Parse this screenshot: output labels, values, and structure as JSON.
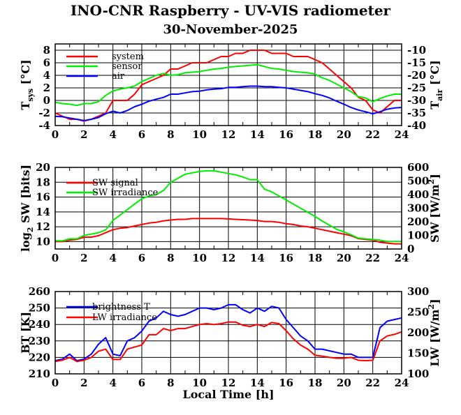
{
  "title": "INO-CNR Raspberry - UV-VIS radiometer",
  "subtitle": "30-November-2025",
  "xlabel": "Local Time [h]",
  "chart_data": [
    {
      "type": "line",
      "xlim": [
        0,
        24
      ],
      "xticks": [
        0,
        2,
        4,
        6,
        8,
        10,
        12,
        14,
        16,
        18,
        20,
        22,
        24
      ],
      "ylim_left": [
        -4,
        9
      ],
      "yticks_left": [
        -4,
        -2,
        0,
        2,
        4,
        6,
        8
      ],
      "ylim_right": [
        -40,
        -7.5
      ],
      "yticks_right": [
        -40,
        -35,
        -30,
        -25,
        -20,
        -15,
        -10
      ],
      "ylabel_left": {
        "main": "T",
        "sub": "sys",
        "rest": " [°C]"
      },
      "ylabel_right": {
        "main": "T",
        "sub": "air",
        "rest": " [°C]"
      },
      "x": [
        0,
        0.5,
        1,
        1.5,
        2,
        2.5,
        3,
        3.5,
        4,
        4.5,
        5,
        5.5,
        6,
        6.5,
        7,
        7.5,
        8,
        8.5,
        9,
        9.5,
        10,
        10.5,
        11,
        11.5,
        12,
        12.5,
        13,
        13.5,
        14,
        14.5,
        15,
        15.5,
        16,
        16.5,
        17,
        17.5,
        18,
        18.5,
        19,
        19.5,
        20,
        20.5,
        21,
        21.5,
        22,
        22.5,
        23,
        23.5,
        24
      ],
      "series": [
        {
          "name": "system",
          "axis": "left",
          "color": "#ff0000",
          "values": [
            -2,
            -2.5,
            -3,
            -3,
            -3.3,
            -3,
            -2.5,
            -2,
            0,
            0,
            0,
            1,
            2.5,
            3,
            3.5,
            4,
            5,
            5,
            5.5,
            6,
            6,
            6,
            6.5,
            7,
            7,
            7.5,
            7.5,
            8,
            8,
            8,
            7.5,
            7.5,
            7.5,
            7,
            7,
            7,
            6.5,
            6,
            5,
            4,
            3,
            2,
            0.5,
            0,
            -1.5,
            -2,
            -1,
            0,
            0
          ]
        },
        {
          "name": "sensor",
          "axis": "left",
          "color": "#00ee00",
          "values": [
            -0.3,
            -0.5,
            -0.6,
            -0.8,
            -0.5,
            -0.5,
            -0.2,
            0.8,
            1.5,
            1.8,
            2,
            2.3,
            3,
            3.5,
            4,
            4.3,
            4,
            4.1,
            4.4,
            4.5,
            4.6,
            4.8,
            5,
            5.1,
            5.3,
            5.4,
            5.5,
            5.6,
            5.7,
            5.4,
            5.1,
            5,
            4.8,
            4.6,
            4.5,
            4.4,
            4.2,
            3.6,
            3.2,
            2.6,
            2,
            1.4,
            0.6,
            0.4,
            -0.2,
            0.3,
            0.7,
            1,
            1
          ]
        },
        {
          "name": "air",
          "axis": "right",
          "color": "#0000ff",
          "values": [
            -36.3,
            -36.5,
            -37,
            -37.5,
            -38,
            -37.5,
            -36.8,
            -35.3,
            -34.3,
            -35,
            -34,
            -32.5,
            -31.5,
            -30.3,
            -29.5,
            -28.8,
            -27.5,
            -27.5,
            -27,
            -26.5,
            -26.3,
            -25.8,
            -25.5,
            -25.3,
            -24.8,
            -24.8,
            -24.5,
            -24.3,
            -24.3,
            -24.5,
            -24.5,
            -24.8,
            -25,
            -25.5,
            -26,
            -26.5,
            -27.3,
            -28,
            -29,
            -30.3,
            -31.5,
            -32.8,
            -33.8,
            -34.5,
            -35.3,
            -34.5,
            -33.5,
            -33,
            -32.8
          ]
        }
      ]
    },
    {
      "type": "line",
      "xlim": [
        0,
        24
      ],
      "xticks": [
        0,
        2,
        4,
        6,
        8,
        10,
        12,
        14,
        16,
        18,
        20,
        22,
        24
      ],
      "ylim_left": [
        9,
        20
      ],
      "yticks_left": [
        10,
        12,
        14,
        16,
        18,
        20
      ],
      "ylim_right": [
        0,
        600
      ],
      "yticks_right": [
        0,
        100,
        200,
        300,
        400,
        500,
        600
      ],
      "ylabel_left": {
        "main": "log",
        "sub": "2",
        "rest": " SW [bits]"
      },
      "ylabel_right": {
        "main": "SW [W/m",
        "sup": "2",
        "rest": "]"
      },
      "x": [
        0,
        0.5,
        1,
        1.5,
        2,
        2.5,
        3,
        3.5,
        4,
        4.5,
        5,
        5.5,
        6,
        6.5,
        7,
        7.5,
        8,
        8.5,
        9,
        9.5,
        10,
        10.5,
        11,
        11.5,
        12,
        12.5,
        13,
        13.5,
        14,
        14.5,
        15,
        15.5,
        16,
        16.5,
        17,
        17.5,
        18,
        18.5,
        19,
        19.5,
        20,
        20.5,
        21,
        21.5,
        22,
        22.5,
        23,
        23.5,
        24
      ],
      "series": [
        {
          "name": "SW signal",
          "axis": "left",
          "color": "#ff0000",
          "values": [
            10,
            10,
            10.2,
            10.3,
            10.6,
            10.6,
            10.8,
            11.2,
            11.6,
            11.8,
            11.9,
            12.1,
            12.3,
            12.5,
            12.6,
            12.8,
            12.9,
            13,
            13,
            13.1,
            13.1,
            13.1,
            13.1,
            13.1,
            13.05,
            13,
            12.95,
            12.9,
            12.85,
            12.7,
            12.7,
            12.6,
            12.4,
            12.3,
            12.1,
            12,
            11.8,
            11.6,
            11.4,
            11.2,
            11,
            10.8,
            10.4,
            10.3,
            10.2,
            9.9,
            9.8,
            9.7,
            9.7
          ]
        },
        {
          "name": "SW irradiance",
          "axis": "right",
          "color": "#00ee00",
          "values": [
            60,
            60,
            75,
            75,
            100,
            110,
            120,
            140,
            210,
            250,
            290,
            330,
            370,
            390,
            400,
            430,
            490,
            520,
            550,
            560,
            570,
            575,
            575,
            565,
            555,
            545,
            530,
            510,
            510,
            440,
            420,
            390,
            360,
            330,
            300,
            270,
            240,
            205,
            175,
            145,
            125,
            105,
            80,
            75,
            70,
            65,
            55,
            55,
            55
          ]
        }
      ]
    },
    {
      "type": "line",
      "xlim": [
        0,
        24
      ],
      "xticks": [
        0,
        2,
        4,
        6,
        8,
        10,
        12,
        14,
        16,
        18,
        20,
        22,
        24
      ],
      "ylim_left": [
        210,
        260
      ],
      "yticks_left": [
        210,
        220,
        230,
        240,
        250,
        260
      ],
      "ylim_right": [
        100,
        300
      ],
      "yticks_right": [
        100,
        150,
        200,
        250,
        300
      ],
      "ylabel_left": {
        "main": "BT [K]",
        "rest": ""
      },
      "ylabel_right": {
        "main": "LW [W/m",
        "sup": "2",
        "rest": "]"
      },
      "x": [
        0,
        0.5,
        1,
        1.5,
        2,
        2.5,
        3,
        3.5,
        4,
        4.5,
        5,
        5.5,
        6,
        6.5,
        7,
        7.5,
        8,
        8.5,
        9,
        9.5,
        10,
        10.5,
        11,
        11.5,
        12,
        12.5,
        13,
        13.5,
        14,
        14.5,
        15,
        15.5,
        16,
        16.5,
        17,
        17.5,
        18,
        18.5,
        19,
        19.5,
        20,
        20.5,
        21,
        21.5,
        22,
        22.5,
        23,
        23.5,
        24
      ],
      "series": [
        {
          "name": "brightness T",
          "axis": "left",
          "color": "#0000ff",
          "values": [
            218,
            219,
            222,
            218,
            219,
            222,
            228,
            232,
            222,
            221,
            230,
            232,
            236,
            242,
            244,
            248,
            246,
            245,
            246,
            248,
            250,
            250,
            249,
            250,
            252,
            252,
            249,
            247,
            250,
            248,
            251,
            250,
            243,
            238,
            233,
            230,
            225,
            225,
            224,
            223,
            222,
            222,
            220,
            220,
            220,
            238,
            242,
            243,
            244
          ]
        },
        {
          "name": "LW irradiance",
          "axis": "right",
          "color": "#ff0000",
          "values": [
            130,
            133,
            140,
            130,
            133,
            140,
            155,
            160,
            135,
            135,
            160,
            165,
            170,
            195,
            195,
            210,
            205,
            210,
            210,
            215,
            220,
            222,
            220,
            222,
            226,
            226,
            218,
            215,
            220,
            215,
            225,
            222,
            205,
            185,
            170,
            160,
            145,
            143,
            140,
            138,
            138,
            140,
            133,
            132,
            133,
            180,
            192,
            196,
            202
          ]
        }
      ]
    }
  ]
}
